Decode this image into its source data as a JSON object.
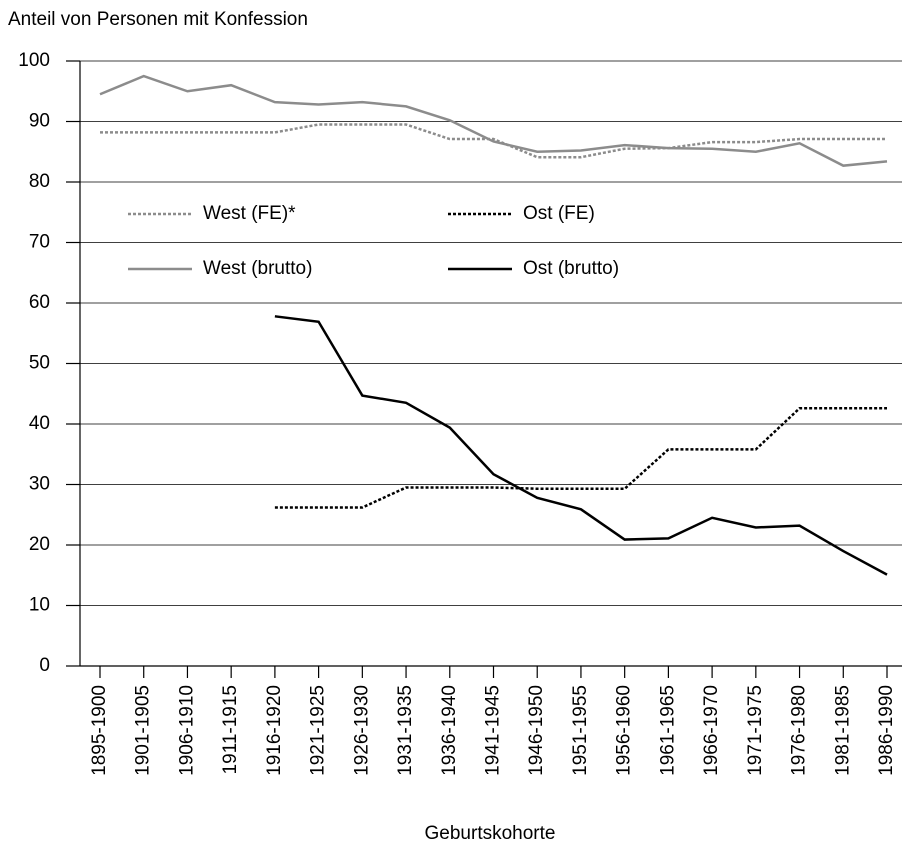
{
  "chart_data": {
    "type": "line",
    "title": "Anteil von Personen mit Konfession",
    "x_label": "Geburtskohorte",
    "categories": [
      "1895-1900",
      "1901-1905",
      "1906-1910",
      "1911-1915",
      "1916-1920",
      "1921-1925",
      "1926-1930",
      "1931-1935",
      "1936-1940",
      "1941-1945",
      "1946-1950",
      "1951-1955",
      "1956-1960",
      "1961-1965",
      "1966-1970",
      "1971-1975",
      "1976-1980",
      "1981-1985",
      "1986-1990"
    ],
    "series": [
      {
        "name": "West (FE)*",
        "color": "#8c8c8c",
        "dashed": true,
        "values": [
          88.2,
          88.2,
          88.2,
          88.2,
          88.2,
          89.5,
          89.5,
          89.5,
          87.1,
          87.1,
          84.1,
          84.1,
          85.5,
          85.6,
          86.6,
          86.6,
          87.1,
          87.1,
          87.1
        ]
      },
      {
        "name": "Ost (FE)",
        "color": "#000000",
        "dashed": true,
        "values": [
          null,
          null,
          null,
          null,
          26.2,
          26.2,
          26.2,
          29.5,
          29.5,
          29.5,
          29.3,
          29.3,
          29.3,
          35.8,
          35.8,
          35.8,
          42.6,
          42.6,
          42.6
        ]
      },
      {
        "name": "West (brutto)",
        "color": "#8c8c8c",
        "dashed": false,
        "values": [
          94.5,
          97.5,
          95.0,
          96.0,
          93.2,
          92.8,
          93.2,
          92.5,
          90.2,
          86.7,
          85.0,
          85.2,
          86.1,
          85.6,
          85.5,
          85.0,
          86.4,
          82.7,
          83.4
        ]
      },
      {
        "name": "Ost (brutto)",
        "color": "#000000",
        "dashed": false,
        "values": [
          null,
          null,
          null,
          null,
          57.8,
          56.9,
          44.7,
          43.5,
          39.4,
          31.7,
          27.8,
          25.9,
          20.9,
          21.1,
          24.5,
          22.9,
          23.2,
          19.0,
          15.1
        ]
      }
    ],
    "ylim": [
      0,
      100
    ],
    "yticks": [
      0,
      10,
      20,
      30,
      40,
      50,
      60,
      70,
      80,
      90,
      100
    ],
    "grid": true
  }
}
